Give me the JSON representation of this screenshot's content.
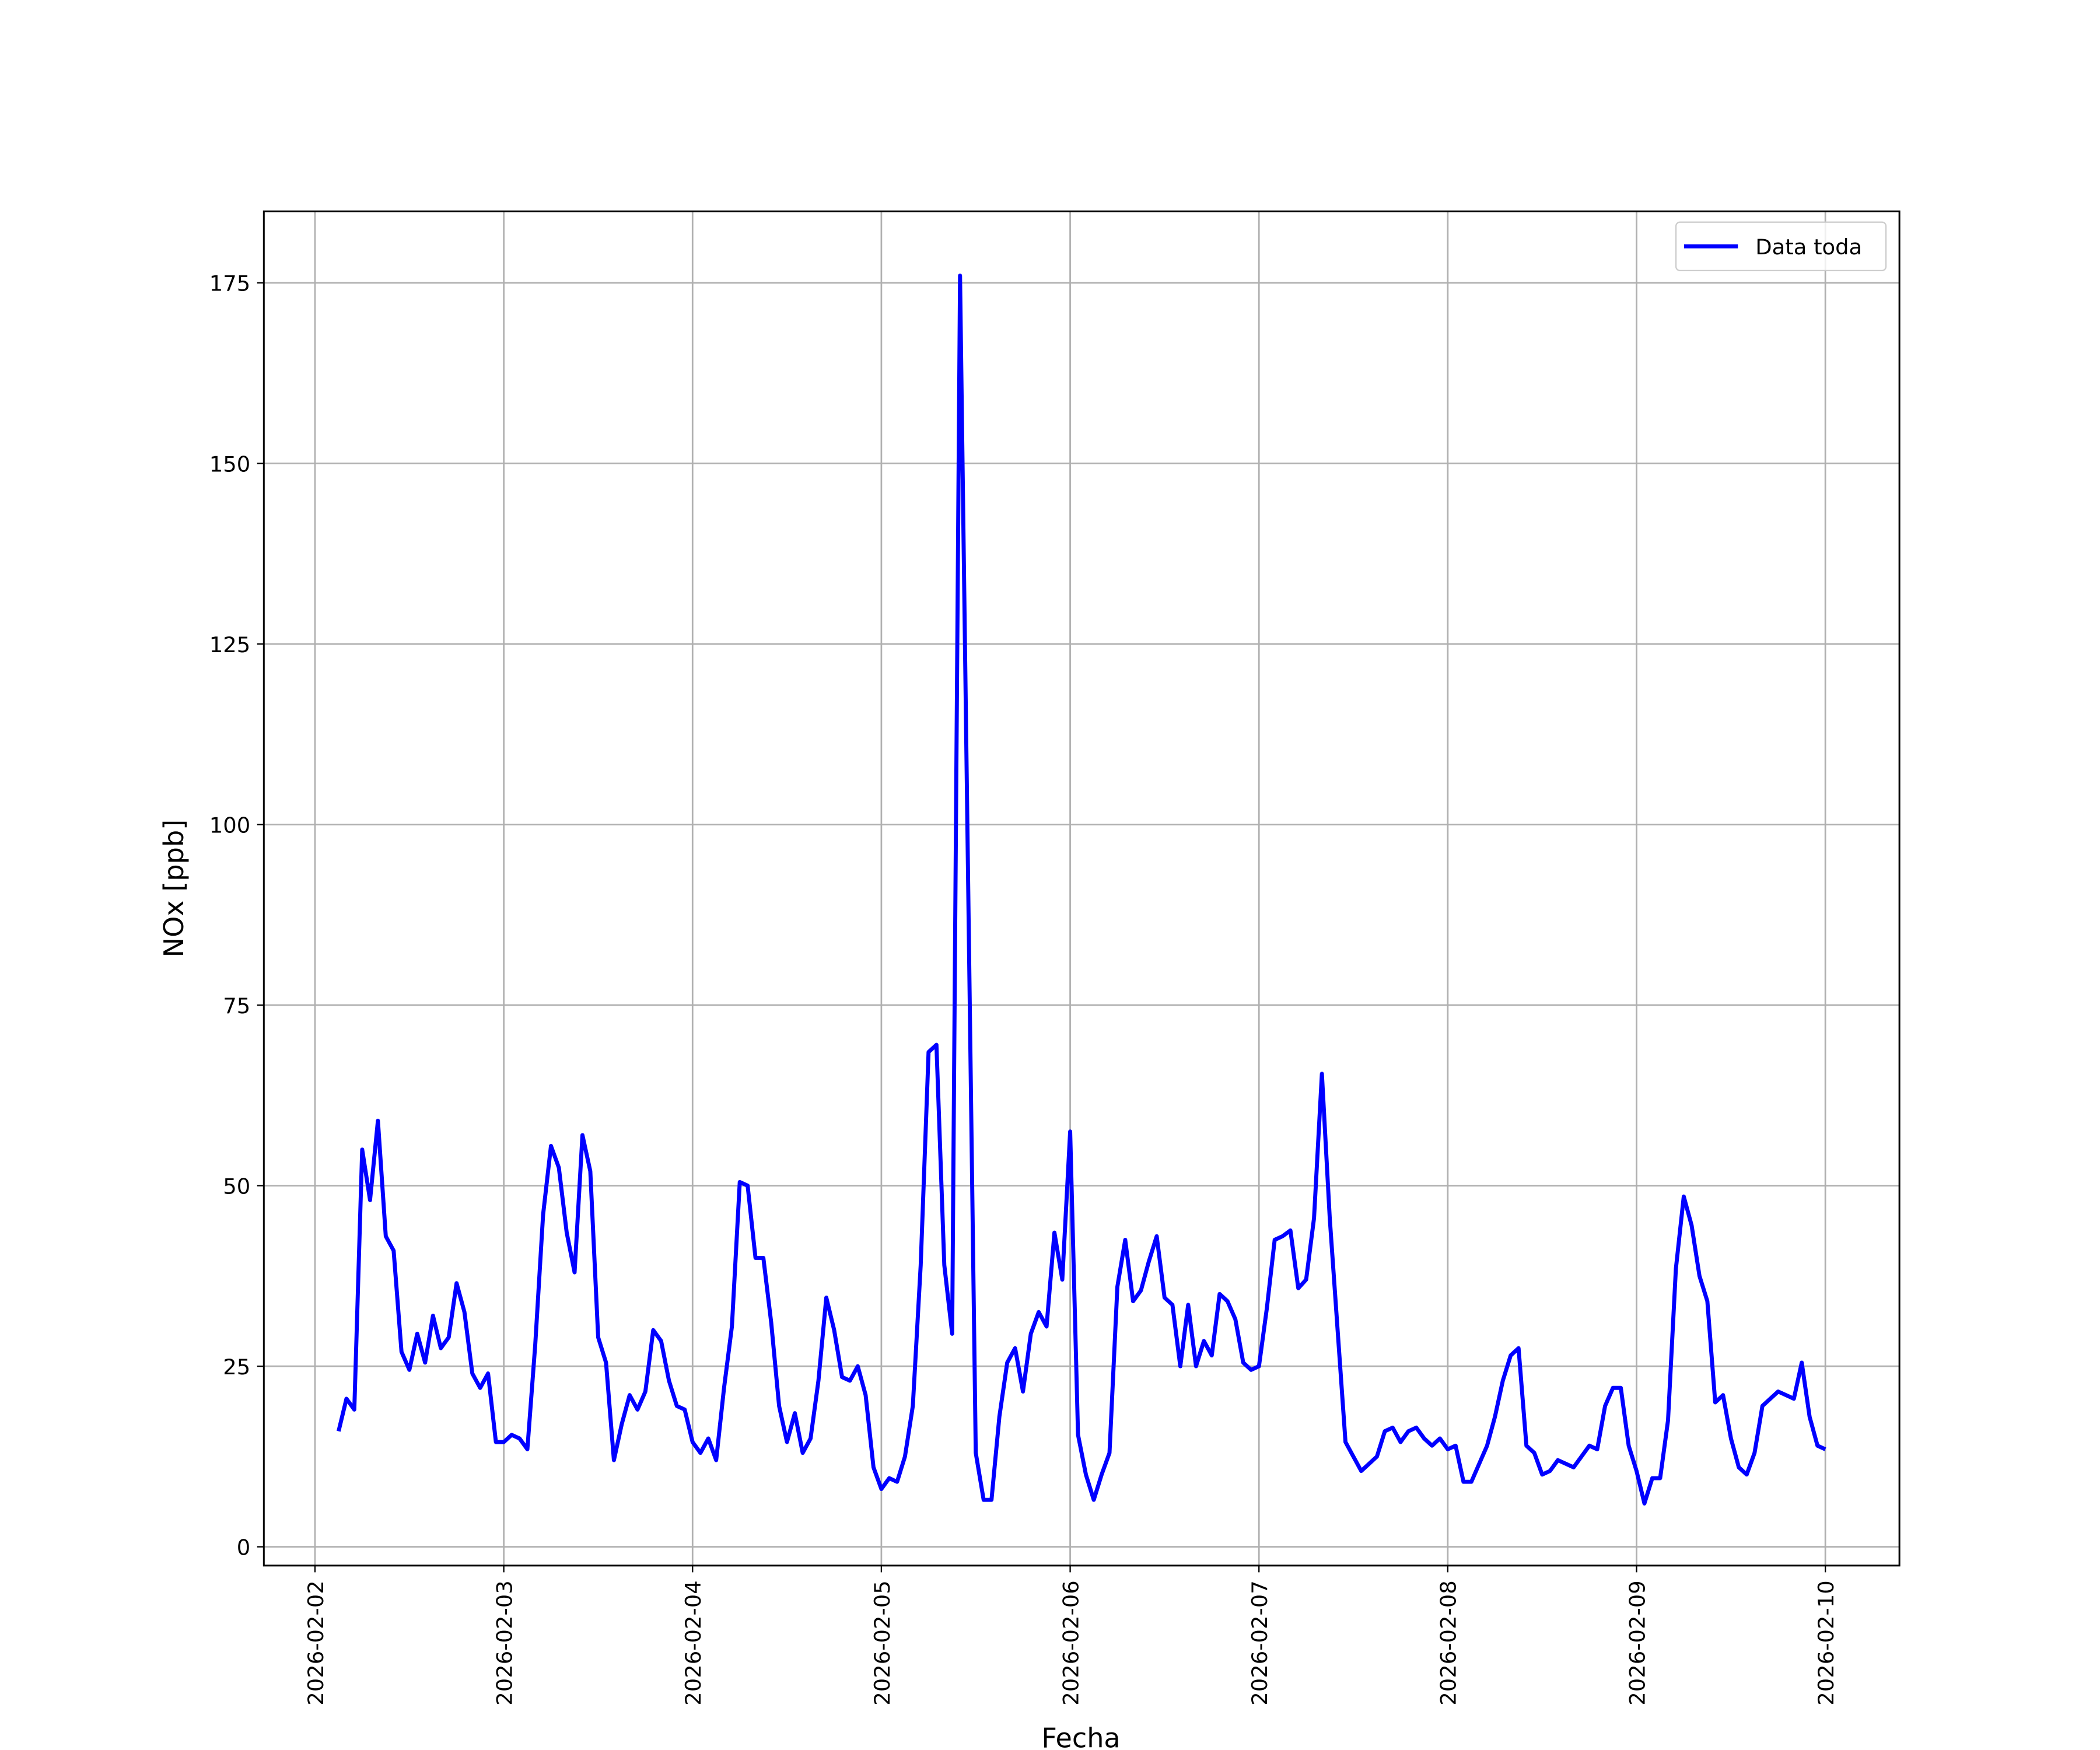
{
  "chart_data": {
    "type": "line",
    "x_label": "Fecha",
    "y_label": "NOx [ppb]",
    "legend": "upper right",
    "grid": true,
    "xlim": [
      "2026-02-01 17:30",
      "2026-02-10 09:25"
    ],
    "xticks": [
      "2026-02-02",
      "2026-02-03",
      "2026-02-04",
      "2026-02-05",
      "2026-02-06",
      "2026-02-07",
      "2026-02-08",
      "2026-02-09",
      "2026-02-10"
    ],
    "ylim": [
      -2.6,
      184.9
    ],
    "yticks": [
      0,
      25,
      50,
      75,
      100,
      125,
      150,
      175
    ],
    "x": [
      "2026-02-02 03:00",
      "2026-02-02 04:00",
      "2026-02-02 05:00",
      "2026-02-02 06:00",
      "2026-02-02 07:00",
      "2026-02-02 08:00",
      "2026-02-02 09:00",
      "2026-02-02 10:00",
      "2026-02-02 11:00",
      "2026-02-02 12:00",
      "2026-02-02 13:00",
      "2026-02-02 14:00",
      "2026-02-02 15:00",
      "2026-02-02 16:00",
      "2026-02-02 17:00",
      "2026-02-02 18:00",
      "2026-02-02 19:00",
      "2026-02-02 20:00",
      "2026-02-02 21:00",
      "2026-02-02 22:00",
      "2026-02-02 23:00",
      "2026-02-03 00:00",
      "2026-02-03 01:00",
      "2026-02-03 02:00",
      "2026-02-03 03:00",
      "2026-02-03 04:00",
      "2026-02-03 05:00",
      "2026-02-03 06:00",
      "2026-02-03 07:00",
      "2026-02-03 08:00",
      "2026-02-03 09:00",
      "2026-02-03 10:00",
      "2026-02-03 11:00",
      "2026-02-03 12:00",
      "2026-02-03 13:00",
      "2026-02-03 14:00",
      "2026-02-03 15:00",
      "2026-02-03 16:00",
      "2026-02-03 17:00",
      "2026-02-03 18:00",
      "2026-02-03 19:00",
      "2026-02-03 20:00",
      "2026-02-03 21:00",
      "2026-02-03 22:00",
      "2026-02-03 23:00",
      "2026-02-04 00:00",
      "2026-02-04 01:00",
      "2026-02-04 02:00",
      "2026-02-04 03:00",
      "2026-02-04 04:00",
      "2026-02-04 05:00",
      "2026-02-04 06:00",
      "2026-02-04 07:00",
      "2026-02-04 08:00",
      "2026-02-04 09:00",
      "2026-02-04 10:00",
      "2026-02-04 11:00",
      "2026-02-04 12:00",
      "2026-02-04 13:00",
      "2026-02-04 14:00",
      "2026-02-04 15:00",
      "2026-02-04 16:00",
      "2026-02-04 17:00",
      "2026-02-04 18:00",
      "2026-02-04 19:00",
      "2026-02-04 20:00",
      "2026-02-04 21:00",
      "2026-02-04 22:00",
      "2026-02-04 23:00",
      "2026-02-05 00:00",
      "2026-02-05 01:00",
      "2026-02-05 02:00",
      "2026-02-05 03:00",
      "2026-02-05 04:00",
      "2026-02-05 05:00",
      "2026-02-05 06:00",
      "2026-02-05 07:00",
      "2026-02-05 08:00",
      "2026-02-05 09:00",
      "2026-02-05 10:00",
      "2026-02-05 11:00",
      "2026-02-05 12:00",
      "2026-02-05 13:00",
      "2026-02-05 14:00",
      "2026-02-05 15:00",
      "2026-02-05 16:00",
      "2026-02-05 17:00",
      "2026-02-05 18:00",
      "2026-02-05 19:00",
      "2026-02-05 20:00",
      "2026-02-05 21:00",
      "2026-02-05 22:00",
      "2026-02-05 23:00",
      "2026-02-06 00:00",
      "2026-02-06 01:00",
      "2026-02-06 02:00",
      "2026-02-06 03:00",
      "2026-02-06 04:00",
      "2026-02-06 05:00",
      "2026-02-06 06:00",
      "2026-02-06 07:00",
      "2026-02-06 08:00",
      "2026-02-06 09:00",
      "2026-02-06 10:00",
      "2026-02-06 11:00",
      "2026-02-06 12:00",
      "2026-02-06 13:00",
      "2026-02-06 14:00",
      "2026-02-06 15:00",
      "2026-02-06 16:00",
      "2026-02-06 17:00",
      "2026-02-06 18:00",
      "2026-02-06 19:00",
      "2026-02-06 20:00",
      "2026-02-06 21:00",
      "2026-02-06 22:00",
      "2026-02-06 23:00",
      "2026-02-07 00:00",
      "2026-02-07 01:00",
      "2026-02-07 02:00",
      "2026-02-07 03:00",
      "2026-02-07 04:00",
      "2026-02-07 05:00",
      "2026-02-07 06:00",
      "2026-02-07 07:00",
      "2026-02-07 08:00",
      "2026-02-07 09:00",
      "2026-02-07 10:00",
      "2026-02-07 11:00",
      "2026-02-07 12:00",
      "2026-02-07 13:00",
      "2026-02-07 14:00",
      "2026-02-07 15:00",
      "2026-02-07 16:00",
      "2026-02-07 17:00",
      "2026-02-07 18:00",
      "2026-02-07 19:00",
      "2026-02-07 20:00",
      "2026-02-07 21:00",
      "2026-02-07 22:00",
      "2026-02-07 23:00",
      "2026-02-08 00:00",
      "2026-02-08 01:00",
      "2026-02-08 02:00",
      "2026-02-08 03:00",
      "2026-02-08 04:00",
      "2026-02-08 05:00",
      "2026-02-08 06:00",
      "2026-02-08 07:00",
      "2026-02-08 08:00",
      "2026-02-08 09:00",
      "2026-02-08 10:00",
      "2026-02-08 11:00",
      "2026-02-08 12:00",
      "2026-02-08 13:00",
      "2026-02-08 14:00",
      "2026-02-08 15:00",
      "2026-02-08 16:00",
      "2026-02-08 17:00",
      "2026-02-08 18:00",
      "2026-02-08 19:00",
      "2026-02-08 20:00",
      "2026-02-08 21:00",
      "2026-02-08 22:00",
      "2026-02-08 23:00",
      "2026-02-09 00:00",
      "2026-02-09 01:00",
      "2026-02-09 02:00",
      "2026-02-09 03:00",
      "2026-02-09 04:00",
      "2026-02-09 05:00",
      "2026-02-09 06:00",
      "2026-02-09 07:00",
      "2026-02-09 08:00",
      "2026-02-09 09:00",
      "2026-02-09 10:00",
      "2026-02-09 11:00",
      "2026-02-09 12:00",
      "2026-02-09 13:00",
      "2026-02-09 14:00",
      "2026-02-09 15:00",
      "2026-02-09 16:00",
      "2026-02-09 17:00",
      "2026-02-09 18:00",
      "2026-02-09 19:00",
      "2026-02-09 20:00",
      "2026-02-09 21:00",
      "2026-02-09 22:00",
      "2026-02-09 23:00",
      "2026-02-10 00:00"
    ],
    "series": [
      {
        "name": "Data toda",
        "color": "#0000ff",
        "values": [
          16,
          20.5,
          19,
          55,
          48,
          59,
          43,
          41,
          27,
          24.5,
          29.5,
          25.5,
          32,
          27.5,
          29,
          36.5,
          32.5,
          24,
          22,
          24,
          14.5,
          14.5,
          15.5,
          15,
          13.5,
          28,
          46,
          55.5,
          52.5,
          43.5,
          38,
          57,
          52,
          29,
          25.5,
          12,
          17,
          21,
          19,
          21.5,
          30,
          28.5,
          23,
          19.5,
          19,
          14.5,
          13,
          15,
          12,
          22,
          30.5,
          50.5,
          50,
          40,
          40,
          31,
          19.5,
          14.5,
          18.5,
          13,
          15,
          23,
          34.5,
          30,
          23.5,
          23,
          25,
          21,
          11,
          8,
          9.5,
          9,
          12.5,
          19.5,
          39,
          68.5,
          69.5,
          39,
          29.5,
          176,
          94.5,
          13,
          6.5,
          6.5,
          18,
          25.5,
          27.5,
          21.5,
          29.5,
          32.5,
          30.5,
          43.5,
          37,
          57.5,
          15.5,
          10,
          6.5,
          10,
          13,
          36,
          42.5,
          34,
          35.5,
          39.5,
          43,
          34.5,
          33.5,
          25,
          33.5,
          25,
          28.5,
          26.5,
          35,
          34,
          31.5,
          25.5,
          24.5,
          25,
          33,
          42.5,
          43,
          43.8,
          35.8,
          37,
          45.5,
          65.5,
          45.5,
          30,
          14.5,
          12.5,
          10.5,
          11.5,
          12.5,
          16,
          16.5,
          14.5,
          16,
          16.5,
          15,
          14,
          15,
          13.5,
          14,
          9,
          9,
          11.5,
          14,
          18,
          23,
          26.5,
          27.5,
          14,
          13,
          10,
          10.5,
          12,
          11.5,
          11,
          12.5,
          14,
          13.5,
          19.5,
          22,
          22,
          14,
          10.5,
          6,
          9.5,
          9.5,
          17.5,
          38.5,
          48.5,
          44.5,
          37.5,
          34,
          20,
          21,
          15,
          11,
          10,
          13,
          19.5,
          20.5,
          21.5,
          21,
          20.5,
          25.5,
          18,
          14,
          13.5
        ]
      }
    ]
  }
}
